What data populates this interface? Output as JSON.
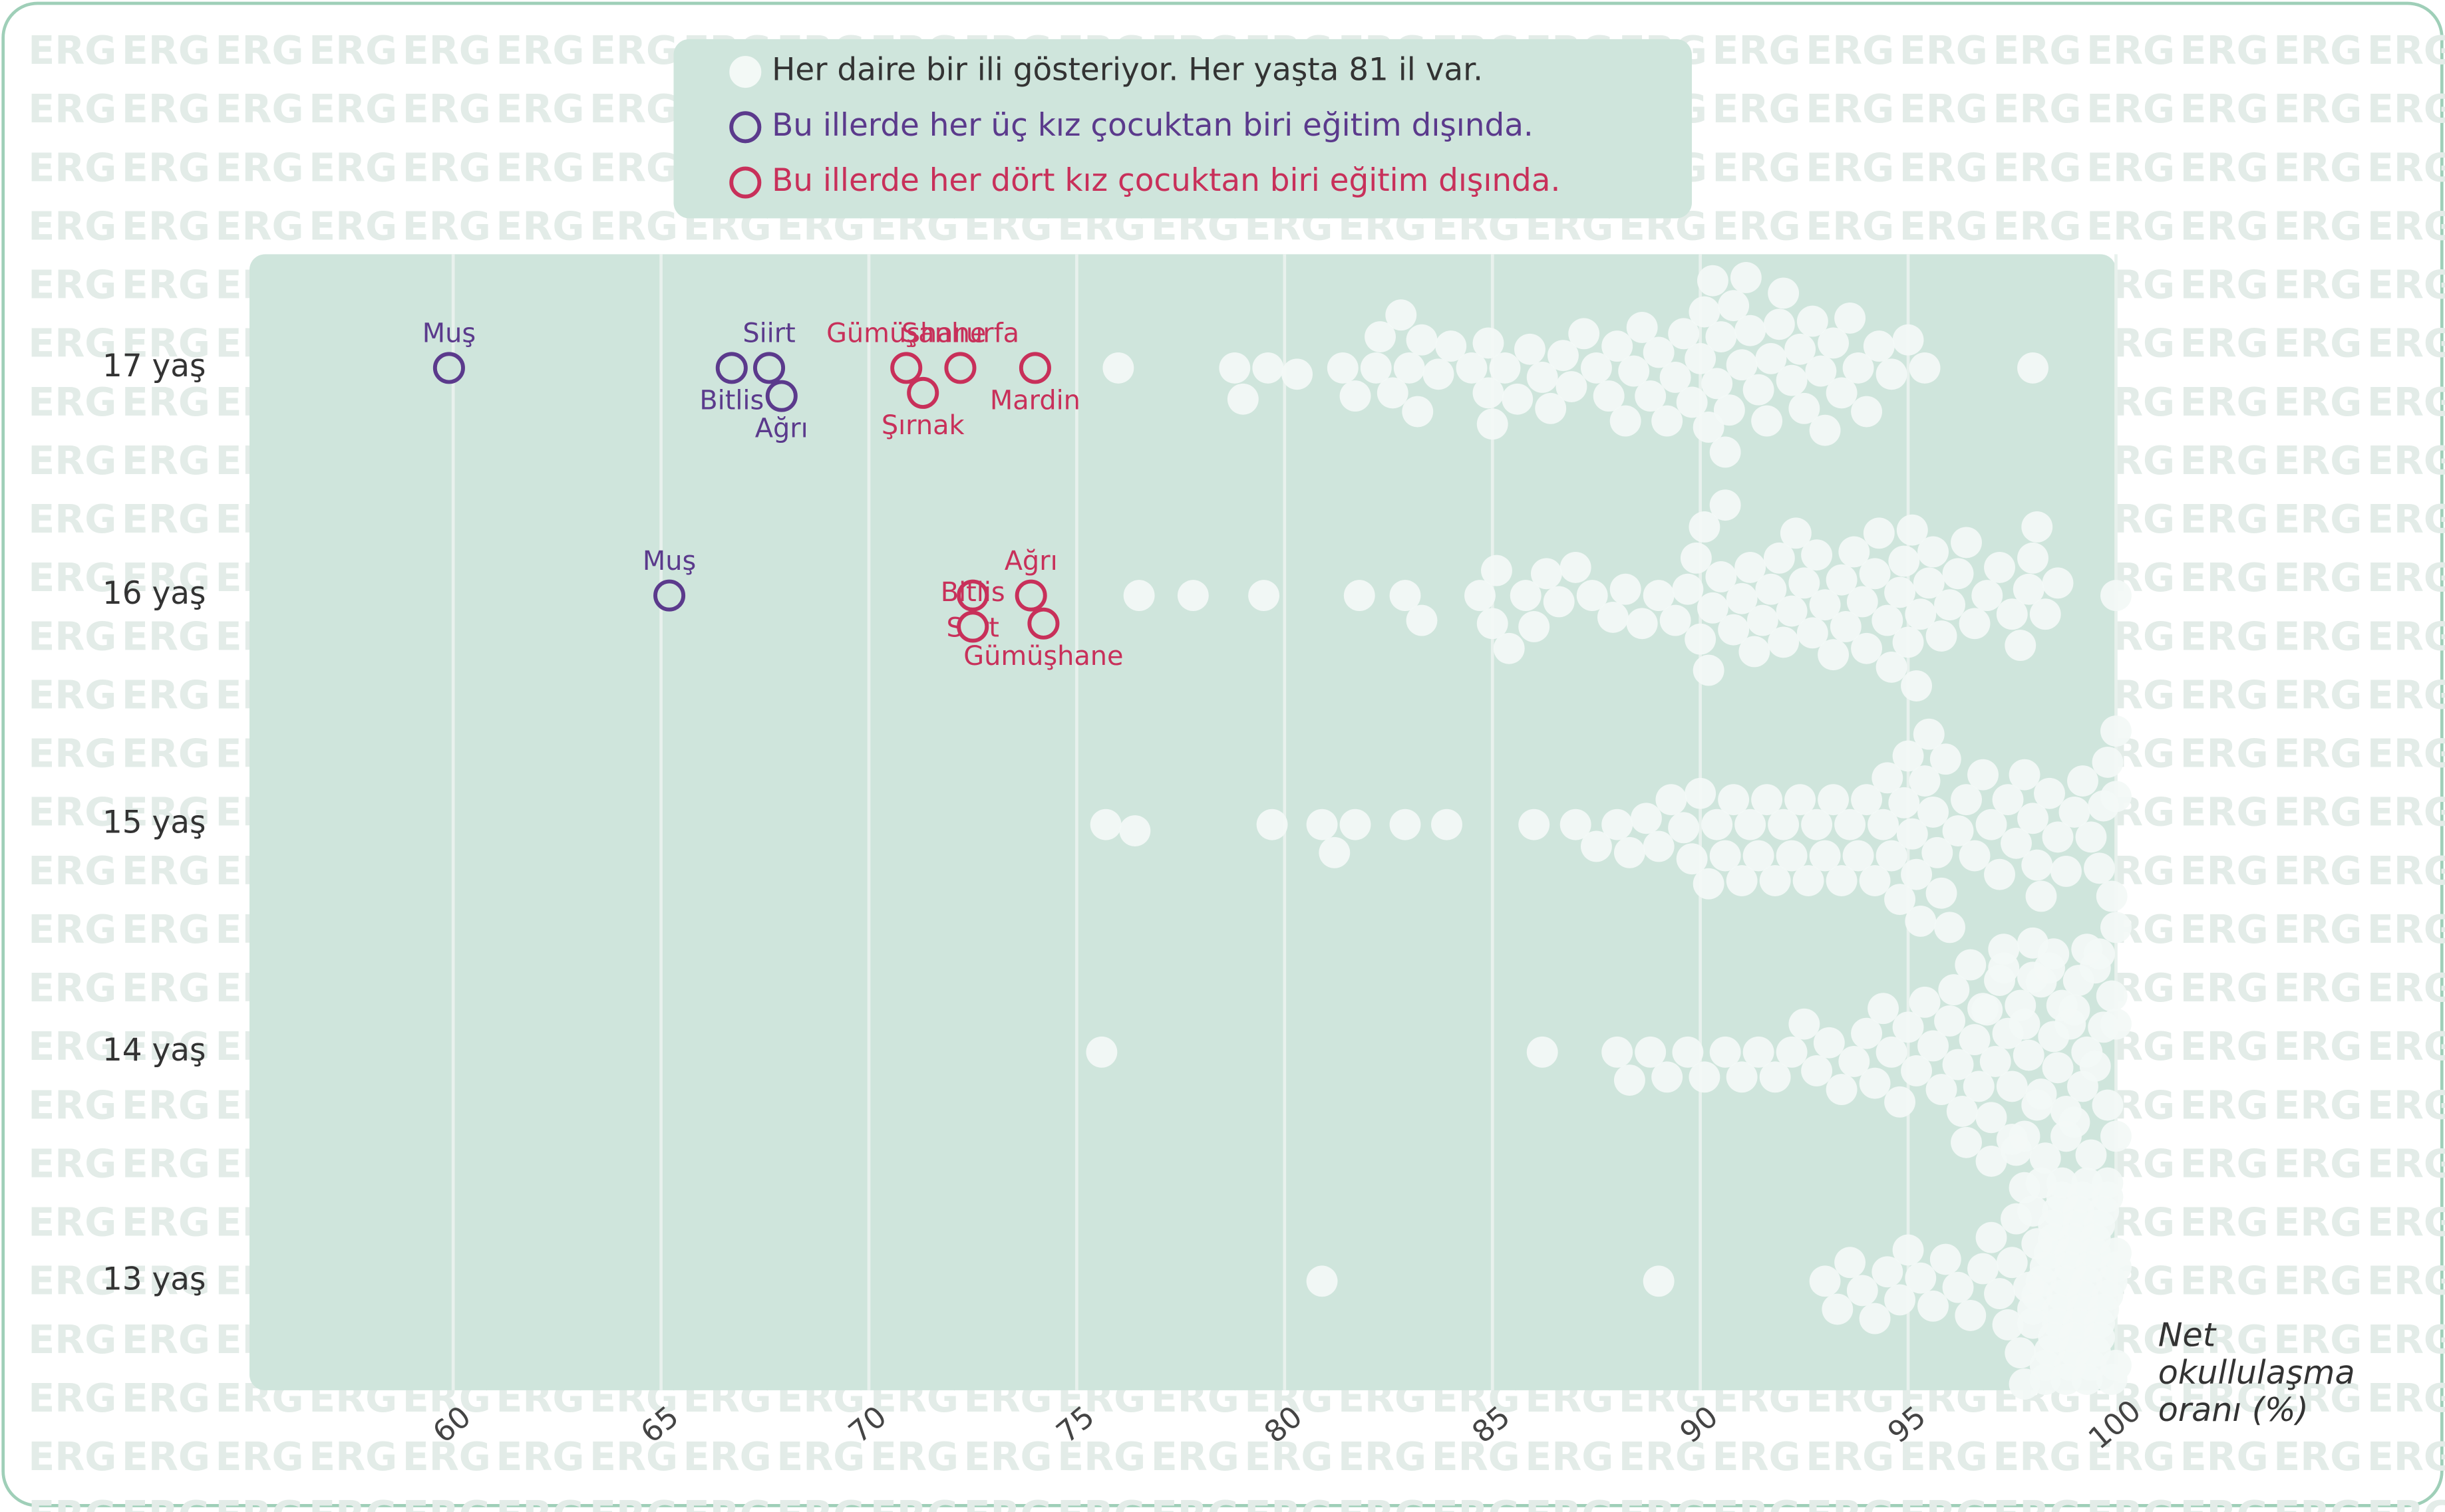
{
  "chart_data": {
    "type": "beeswarm",
    "legend": [
      {
        "text": "Her daire bir ili gösteriyor. Her yaşta 81 il var.",
        "color": "#f3f9f6"
      },
      {
        "text": "Bu illerde her üç kız çocuktan biri eğitim dışında.",
        "color": "#5b3a8c"
      },
      {
        "text": "Bu illerde her dört kız çocuktan biri eğitim dışında.",
        "color": "#c8305a"
      }
    ],
    "watermark": "ERG",
    "xlabel": [
      "Net",
      "okullulaşma",
      "oranı (%)"
    ],
    "xlim": [
      55.1,
      100
    ],
    "xticks": [
      60,
      65,
      70,
      75,
      80,
      85,
      90,
      95,
      100
    ],
    "grid": true,
    "point_color": "#f3f9f6",
    "series": [
      {
        "name": "17 yaş",
        "highlights": [
          {
            "name": "Muş",
            "value": 59.9,
            "color": "#5b3a8c"
          },
          {
            "name": "Bitlis",
            "value": 66.7,
            "color": "#5b3a8c"
          },
          {
            "name": "Siirt",
            "value": 67.6,
            "color": "#5b3a8c"
          },
          {
            "name": "Ağrı",
            "value": 67.9,
            "color": "#5b3a8c"
          },
          {
            "name": "Gümüşhane",
            "value": 70.9,
            "color": "#c8305a"
          },
          {
            "name": "Şırnak",
            "value": 71.3,
            "color": "#c8305a"
          },
          {
            "name": "Şanlıurfa",
            "value": 72.2,
            "color": "#c8305a"
          },
          {
            "name": "Mardin",
            "value": 74.0,
            "color": "#c8305a"
          }
        ],
        "values": [
          76.0,
          78.8,
          79.0,
          79.6,
          80.3,
          81.4,
          81.7,
          82.2,
          82.3,
          82.6,
          82.8,
          83.0,
          83.2,
          83.3,
          83.7,
          84.0,
          84.5,
          84.9,
          84.9,
          85.0,
          85.3,
          85.6,
          85.9,
          86.2,
          86.4,
          86.7,
          86.9,
          87.2,
          87.5,
          87.8,
          88.0,
          88.2,
          88.4,
          88.6,
          88.8,
          89.0,
          89.2,
          89.4,
          89.6,
          89.8,
          90.0,
          90.1,
          90.2,
          90.3,
          90.4,
          90.5,
          90.6,
          90.7,
          90.8,
          91.0,
          91.1,
          91.2,
          91.4,
          91.6,
          91.7,
          91.9,
          92.0,
          92.2,
          92.4,
          92.5,
          92.7,
          92.9,
          93.0,
          93.2,
          93.4,
          93.6,
          93.8,
          94.0,
          94.3,
          94.6,
          95.0,
          95.4,
          98.0
        ]
      },
      {
        "name": "16 yaş",
        "highlights": [
          {
            "name": "Muş",
            "value": 65.2,
            "color": "#5b3a8c"
          },
          {
            "name": "Siirt",
            "value": 72.5,
            "color": "#c8305a"
          },
          {
            "name": "Bitlis",
            "value": 72.5,
            "color": "#c8305a"
          },
          {
            "name": "Gümüşhane",
            "value": 74.2,
            "color": "#c8305a"
          },
          {
            "name": "Ağrı",
            "value": 73.9,
            "color": "#c8305a"
          }
        ],
        "values": [
          76.5,
          77.8,
          79.5,
          81.8,
          82.9,
          83.3,
          84.7,
          85.0,
          85.1,
          85.4,
          85.8,
          86.0,
          86.3,
          86.6,
          87.0,
          87.4,
          87.9,
          88.2,
          88.6,
          89.0,
          89.4,
          89.7,
          89.9,
          90.0,
          90.1,
          90.2,
          90.3,
          90.5,
          90.6,
          90.8,
          91.0,
          91.2,
          91.3,
          91.5,
          91.7,
          91.9,
          92.0,
          92.2,
          92.3,
          92.5,
          92.7,
          92.8,
          93.0,
          93.2,
          93.4,
          93.5,
          93.7,
          93.9,
          94.0,
          94.2,
          94.3,
          94.5,
          94.6,
          94.8,
          94.9,
          95.0,
          95.1,
          95.2,
          95.3,
          95.5,
          95.6,
          95.8,
          96.0,
          96.2,
          96.4,
          96.6,
          96.9,
          97.2,
          97.5,
          97.7,
          97.9,
          98.0,
          98.1,
          98.3,
          98.6,
          100.0
        ]
      },
      {
        "name": "15 yaş",
        "highlights": [],
        "values": [
          75.7,
          76.4,
          79.7,
          80.9,
          81.2,
          81.7,
          82.9,
          83.9,
          86.0,
          87.0,
          87.5,
          88.0,
          88.3,
          88.7,
          89.0,
          89.3,
          89.6,
          89.8,
          90.0,
          90.2,
          90.4,
          90.6,
          90.8,
          91.0,
          91.2,
          91.4,
          91.6,
          91.8,
          92.0,
          92.2,
          92.4,
          92.6,
          92.8,
          93.0,
          93.2,
          93.4,
          93.6,
          93.8,
          94.0,
          94.2,
          94.4,
          94.5,
          94.6,
          94.8,
          94.9,
          95.0,
          95.1,
          95.2,
          95.3,
          95.4,
          95.5,
          95.6,
          95.7,
          95.8,
          95.9,
          96.0,
          96.2,
          96.4,
          96.6,
          96.8,
          97.0,
          97.2,
          97.4,
          97.6,
          97.8,
          98.0,
          98.1,
          98.2,
          98.4,
          98.6,
          98.8,
          99.0,
          99.2,
          99.4,
          99.6,
          99.7,
          99.8,
          99.9,
          100.0,
          100.0,
          100.0
        ]
      },
      {
        "name": "14 yaş",
        "highlights": [],
        "values": [
          75.6,
          86.2,
          88.0,
          88.3,
          88.8,
          89.2,
          89.7,
          90.1,
          90.6,
          91.0,
          91.4,
          91.8,
          92.2,
          92.5,
          92.8,
          93.1,
          93.4,
          93.7,
          94.0,
          94.2,
          94.4,
          94.6,
          94.8,
          95.0,
          95.2,
          95.4,
          95.6,
          95.8,
          96.0,
          96.1,
          96.2,
          96.4,
          96.5,
          96.6,
          96.8,
          96.9,
          97.0,
          97.1,
          97.2,
          97.3,
          97.4,
          97.5,
          97.6,
          97.7,
          97.8,
          97.9,
          98.0,
          98.1,
          98.2,
          98.3,
          98.4,
          98.5,
          98.6,
          98.7,
          98.8,
          98.9,
          99.0,
          99.1,
          99.2,
          99.3,
          99.4,
          99.5,
          99.6,
          99.7,
          99.8,
          99.9,
          100.0,
          97.0,
          97.5,
          98.0,
          98.5,
          99.0,
          99.5,
          96.3,
          96.7,
          97.3,
          97.8,
          98.2,
          98.8,
          99.3,
          100.0
        ]
      },
      {
        "name": "13 yaş",
        "highlights": [],
        "values": [
          80.9,
          89.0,
          93.0,
          93.3,
          93.6,
          93.9,
          94.2,
          94.5,
          94.8,
          95.0,
          95.3,
          95.6,
          95.9,
          96.2,
          96.5,
          96.8,
          97.0,
          97.2,
          97.4,
          97.6,
          97.8,
          98.0,
          98.1,
          98.2,
          98.3,
          98.4,
          98.5,
          98.6,
          98.7,
          98.8,
          98.9,
          99.0,
          99.1,
          99.2,
          99.3,
          99.4,
          99.5,
          99.6,
          99.7,
          99.8,
          99.9,
          100.0,
          97.9,
          98.2,
          98.5,
          98.8,
          99.1,
          99.4,
          99.7,
          100.0,
          98.0,
          98.3,
          98.6,
          98.9,
          99.2,
          99.5,
          99.8,
          97.5,
          97.8,
          98.1,
          98.4,
          98.7,
          99.0,
          99.3,
          99.6,
          99.9,
          98.5,
          98.9,
          99.2,
          99.6,
          100.0,
          98.3,
          97.7,
          98.6,
          99.1,
          99.5,
          98.0,
          99.8,
          99.3,
          98.7,
          99.0
        ]
      }
    ]
  }
}
